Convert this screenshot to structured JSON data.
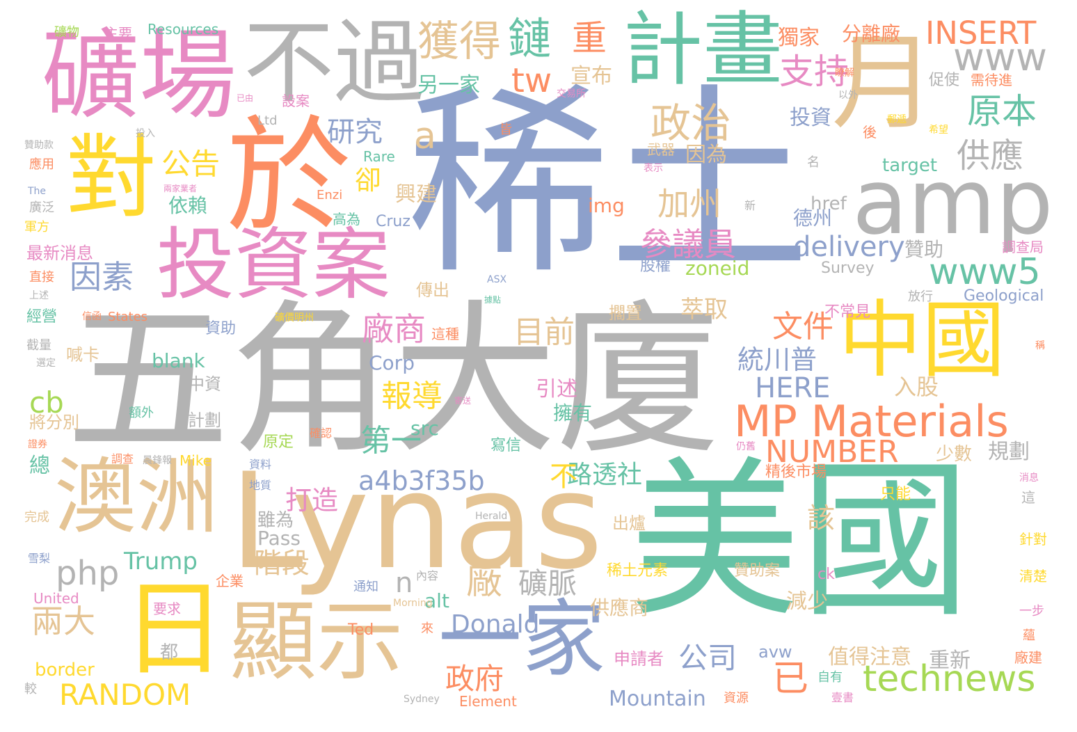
{
  "palette": {
    "grey": "#b3b3b3",
    "blue": "#8da0cb",
    "teal": "#66c2a5",
    "tan": "#e5c494",
    "orange": "#fc8d62",
    "yellow": "#ffd92f",
    "pink": "#e78ac3",
    "green": "#a6d854"
  },
  "words": [
    {
      "text": "稀土",
      "color": "blue"
    },
    {
      "text": "五角大廈",
      "color": "grey"
    },
    {
      "text": "美國",
      "color": "teal"
    },
    {
      "text": "Lynas",
      "color": "tan"
    },
    {
      "text": "於",
      "color": "orange"
    },
    {
      "text": "礦場",
      "color": "pink"
    },
    {
      "text": "不過",
      "color": "grey"
    },
    {
      "text": "計畫",
      "color": "teal"
    },
    {
      "text": "月",
      "color": "tan"
    },
    {
      "text": "對",
      "color": "yellow"
    },
    {
      "text": "投資案",
      "color": "pink"
    },
    {
      "text": "amp",
      "color": "grey"
    },
    {
      "text": "中國",
      "color": "yellow"
    },
    {
      "text": "澳洲",
      "color": "tan"
    },
    {
      "text": "日",
      "color": "yellow"
    },
    {
      "text": "顯示",
      "color": "tan"
    },
    {
      "text": "一家",
      "color": "blue"
    },
    {
      "text": "MP Materials",
      "color": "orange"
    },
    {
      "text": "獲得",
      "color": "tan"
    },
    {
      "text": "鏈",
      "color": "teal"
    },
    {
      "text": "重",
      "color": "orange"
    },
    {
      "text": "INSERT",
      "color": "orange"
    },
    {
      "text": "www",
      "color": "grey"
    },
    {
      "text": "政治",
      "color": "tan"
    },
    {
      "text": "tw",
      "color": "orange"
    },
    {
      "text": "支持",
      "color": "pink"
    },
    {
      "text": "原本",
      "color": "teal"
    },
    {
      "text": "供應",
      "color": "grey"
    },
    {
      "text": "www5",
      "color": "teal"
    },
    {
      "text": "delivery",
      "color": "blue"
    },
    {
      "text": "參議員",
      "color": "pink"
    },
    {
      "text": "加州",
      "color": "tan"
    },
    {
      "text": "公告",
      "color": "yellow"
    },
    {
      "text": "研究",
      "color": "blue"
    },
    {
      "text": "a",
      "color": "tan"
    },
    {
      "text": "卻",
      "color": "yellow"
    },
    {
      "text": "因素",
      "color": "blue"
    },
    {
      "text": "廠商",
      "color": "pink"
    },
    {
      "text": "目前",
      "color": "tan"
    },
    {
      "text": "文件",
      "color": "orange"
    },
    {
      "text": "報導",
      "color": "yellow"
    },
    {
      "text": "第一",
      "color": "teal"
    },
    {
      "text": "NUMBER",
      "color": "orange"
    },
    {
      "text": "HERE",
      "color": "blue"
    },
    {
      "text": "統川普",
      "color": "blue"
    },
    {
      "text": "a4b3f35b",
      "color": "blue"
    },
    {
      "text": "打造",
      "color": "pink"
    },
    {
      "text": "路透社",
      "color": "teal"
    },
    {
      "text": "cb",
      "color": "green"
    },
    {
      "text": "php",
      "color": "grey"
    },
    {
      "text": "n",
      "color": "grey"
    },
    {
      "text": "廠",
      "color": "tan"
    },
    {
      "text": "礦脈",
      "color": "grey"
    },
    {
      "text": "階段",
      "color": "tan"
    },
    {
      "text": "兩大",
      "color": "tan"
    },
    {
      "text": "technews",
      "color": "green"
    },
    {
      "text": "RANDOM",
      "color": "yellow"
    },
    {
      "text": "政府",
      "color": "orange"
    },
    {
      "text": "Donald",
      "color": "blue"
    },
    {
      "text": "公司",
      "color": "blue"
    },
    {
      "text": "已",
      "color": "orange"
    },
    {
      "text": "Mountain",
      "color": "blue"
    },
    {
      "text": "該",
      "color": "tan"
    },
    {
      "text": "不",
      "color": "yellow"
    },
    {
      "text": "Trump",
      "color": "teal"
    },
    {
      "text": "Pass",
      "color": "grey"
    },
    {
      "text": "萃取",
      "color": "tan"
    },
    {
      "text": "zoneid",
      "color": "green"
    },
    {
      "text": "blank",
      "color": "teal"
    },
    {
      "text": "Corp",
      "color": "blue"
    },
    {
      "text": "src",
      "color": "teal"
    },
    {
      "text": "alt",
      "color": "teal"
    },
    {
      "text": "依賴",
      "color": "teal"
    },
    {
      "text": "投資",
      "color": "blue"
    },
    {
      "text": "德州",
      "color": "blue"
    },
    {
      "text": "贊助",
      "color": "grey"
    },
    {
      "text": "img",
      "color": "orange"
    },
    {
      "text": "href",
      "color": "grey"
    },
    {
      "text": "target",
      "color": "teal"
    },
    {
      "text": "另一家",
      "color": "teal"
    },
    {
      "text": "宣布",
      "color": "tan"
    },
    {
      "text": "獨家",
      "color": "orange"
    },
    {
      "text": "分離廠",
      "color": "orange"
    },
    {
      "text": "因為",
      "color": "tan"
    },
    {
      "text": "興建",
      "color": "tan"
    },
    {
      "text": "引述",
      "color": "pink"
    },
    {
      "text": "擁有",
      "color": "teal"
    },
    {
      "text": "入股",
      "color": "tan"
    },
    {
      "text": "規劃",
      "color": "grey"
    },
    {
      "text": "少數",
      "color": "tan"
    },
    {
      "text": "值得注意",
      "color": "tan"
    },
    {
      "text": "重新",
      "color": "grey"
    },
    {
      "text": "減少",
      "color": "tan"
    },
    {
      "text": "供應商",
      "color": "tan"
    },
    {
      "text": "申請者",
      "color": "pink"
    },
    {
      "text": "出爐",
      "color": "tan"
    },
    {
      "text": "稀土元素",
      "color": "yellow"
    },
    {
      "text": "贊助案",
      "color": "tan"
    },
    {
      "text": "精後市場",
      "color": "orange"
    },
    {
      "text": "只能",
      "color": "yellow"
    },
    {
      "text": "不常見",
      "color": "pink"
    },
    {
      "text": "擱置",
      "color": "tan"
    },
    {
      "text": "傳出",
      "color": "tan"
    },
    {
      "text": "股權",
      "color": "blue"
    },
    {
      "text": "Survey",
      "color": "grey"
    },
    {
      "text": "Geological",
      "color": "blue"
    },
    {
      "text": "調查局",
      "color": "pink"
    },
    {
      "text": "放行",
      "color": "grey"
    },
    {
      "text": "促使",
      "color": "grey"
    },
    {
      "text": "需待進",
      "color": "orange"
    },
    {
      "text": "武器",
      "color": "tan"
    },
    {
      "text": "名",
      "color": "grey"
    },
    {
      "text": "後",
      "color": "orange"
    },
    {
      "text": "皆",
      "color": "orange"
    },
    {
      "text": "新",
      "color": "grey"
    },
    {
      "text": "表示",
      "color": "pink"
    },
    {
      "text": "以外",
      "color": "grey"
    },
    {
      "text": "瞭解",
      "color": "orange"
    },
    {
      "text": "交易所",
      "color": "pink"
    },
    {
      "text": "ASX",
      "color": "blue"
    },
    {
      "text": "Ltd",
      "color": "grey"
    },
    {
      "text": "Rare",
      "color": "teal"
    },
    {
      "text": "Enzi",
      "color": "orange"
    },
    {
      "text": "Cruz",
      "color": "blue"
    },
    {
      "text": "高為",
      "color": "teal"
    },
    {
      "text": "Mike",
      "color": "yellow"
    },
    {
      "text": "Ted",
      "color": "orange"
    },
    {
      "text": "Herald",
      "color": "grey"
    },
    {
      "text": "Morning",
      "color": "tan"
    },
    {
      "text": "Sydney",
      "color": "grey"
    },
    {
      "text": "Element",
      "color": "orange"
    },
    {
      "text": "United",
      "color": "pink"
    },
    {
      "text": "States",
      "color": "orange"
    },
    {
      "text": "The",
      "color": "blue"
    },
    {
      "text": "Resources",
      "color": "teal"
    },
    {
      "text": "主要",
      "color": "pink"
    },
    {
      "text": "礦物",
      "color": "green"
    },
    {
      "text": "設案",
      "color": "pink"
    },
    {
      "text": "投入",
      "color": "grey"
    },
    {
      "text": "贊助款",
      "color": "grey"
    },
    {
      "text": "應用",
      "color": "orange"
    },
    {
      "text": "兩家業者",
      "color": "pink"
    },
    {
      "text": "廣泛",
      "color": "grey"
    },
    {
      "text": "軍方",
      "color": "yellow"
    },
    {
      "text": "最新消息",
      "color": "pink"
    },
    {
      "text": "直接",
      "color": "orange"
    },
    {
      "text": "上述",
      "color": "grey"
    },
    {
      "text": "經營",
      "color": "teal"
    },
    {
      "text": "截量",
      "color": "grey"
    },
    {
      "text": "選定",
      "color": "grey"
    },
    {
      "text": "喊卡",
      "color": "tan"
    },
    {
      "text": "中資",
      "color": "grey"
    },
    {
      "text": "計劃",
      "color": "grey"
    },
    {
      "text": "將分別",
      "color": "tan"
    },
    {
      "text": "額外",
      "color": "teal"
    },
    {
      "text": "證券",
      "color": "orange"
    },
    {
      "text": "總",
      "color": "teal"
    },
    {
      "text": "原定",
      "color": "green"
    },
    {
      "text": "確認",
      "color": "orange"
    },
    {
      "text": "資料",
      "color": "blue"
    },
    {
      "text": "晨鋒報",
      "color": "grey"
    },
    {
      "text": "調查",
      "color": "orange"
    },
    {
      "text": "地質",
      "color": "blue"
    },
    {
      "text": "雖為",
      "color": "grey"
    },
    {
      "text": "完成",
      "color": "tan"
    },
    {
      "text": "要求",
      "color": "pink"
    },
    {
      "text": "都",
      "color": "grey"
    },
    {
      "text": "border",
      "color": "yellow"
    },
    {
      "text": "較",
      "color": "grey"
    },
    {
      "text": "企業",
      "color": "orange"
    },
    {
      "text": "通知",
      "color": "blue"
    },
    {
      "text": "內容",
      "color": "grey"
    },
    {
      "text": "來",
      "color": "orange"
    },
    {
      "text": "寄送",
      "color": "pink"
    },
    {
      "text": "寫信",
      "color": "teal"
    },
    {
      "text": "仍舊",
      "color": "pink"
    },
    {
      "text": "資助",
      "color": "blue"
    },
    {
      "text": "信函",
      "color": "orange"
    },
    {
      "text": "據點",
      "color": "teal"
    },
    {
      "text": "這種",
      "color": "orange"
    },
    {
      "text": "礦價明州",
      "color": "yellow"
    },
    {
      "text": "已由",
      "color": "pink"
    },
    {
      "text": "avw",
      "color": "blue"
    },
    {
      "text": "ck",
      "color": "pink"
    },
    {
      "text": "自有",
      "color": "teal"
    },
    {
      "text": "資源",
      "color": "orange"
    },
    {
      "text": "壹書",
      "color": "pink"
    },
    {
      "text": "廠建",
      "color": "orange"
    },
    {
      "text": "一步",
      "color": "pink"
    },
    {
      "text": "清楚",
      "color": "yellow"
    },
    {
      "text": "針對",
      "color": "yellow"
    },
    {
      "text": "這",
      "color": "grey"
    },
    {
      "text": "消息",
      "color": "pink"
    },
    {
      "text": "稱",
      "color": "orange"
    },
    {
      "text": "希望",
      "color": "yellow"
    },
    {
      "text": "郵遞",
      "color": "yellow"
    },
    {
      "text": "蘊",
      "color": "orange"
    },
    {
      "text": "雪梨",
      "color": "blue"
    }
  ]
}
